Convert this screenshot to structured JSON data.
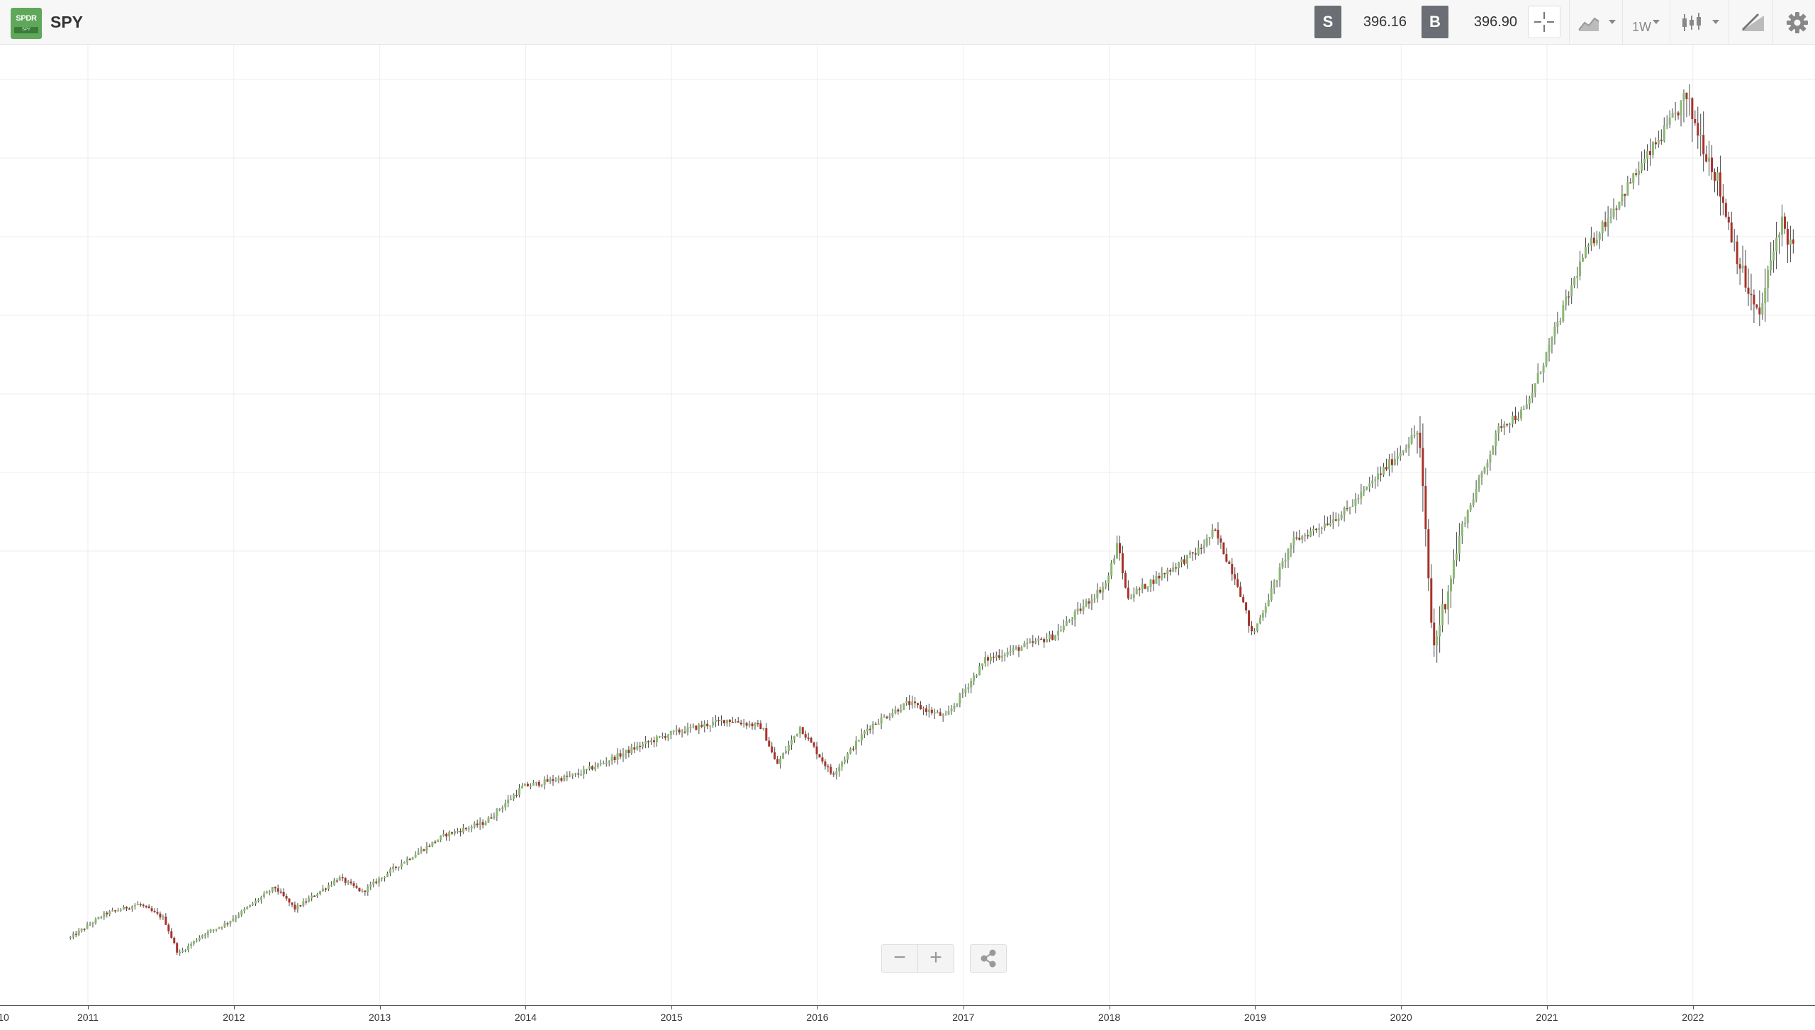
{
  "header": {
    "logo_text": "SPDR",
    "logo_sub": "SPY",
    "symbol": "SPY",
    "sell_label": "S",
    "sell_price": "396.16",
    "buy_label": "B",
    "buy_price": "396.90",
    "timeframe": "1W"
  },
  "colors": {
    "up": "#8bb874",
    "down": "#a8322a",
    "grid": "#eeeeee",
    "badge": "#6b6e75"
  },
  "icons": [
    "crosshair-icon",
    "area-chart-icon",
    "candlestick-icon",
    "drawing-tool-icon",
    "gear-icon",
    "share-icon",
    "zoom-out-icon",
    "zoom-in-icon"
  ],
  "chart_data": {
    "type": "candlestick",
    "title": "",
    "xlabel": "",
    "ylabel": "",
    "x_ticks": [
      "10",
      "2011",
      "2012",
      "2013",
      "2014",
      "2015",
      "2016",
      "2017",
      "2018",
      "2019",
      "2020",
      "2021",
      "2022"
    ],
    "x_tick_years": [
      2010.0,
      2011.0,
      2012.0,
      2013.0,
      2014.0,
      2015.0,
      2016.0,
      2017.0,
      2018.0,
      2019.0,
      2020.0,
      2021.0,
      2022.0
    ],
    "ylim": [
      95,
      490
    ],
    "y_axis_labels_visible": false,
    "grid": true,
    "interval": "weekly",
    "close_path": [
      {
        "t": 2010.88,
        "v": 120
      },
      {
        "t": 2011.12,
        "v": 130
      },
      {
        "t": 2011.35,
        "v": 134
      },
      {
        "t": 2011.52,
        "v": 128
      },
      {
        "t": 2011.62,
        "v": 113
      },
      {
        "t": 2011.78,
        "v": 121
      },
      {
        "t": 2011.95,
        "v": 126
      },
      {
        "t": 2012.28,
        "v": 141
      },
      {
        "t": 2012.42,
        "v": 132
      },
      {
        "t": 2012.72,
        "v": 145
      },
      {
        "t": 2012.88,
        "v": 139
      },
      {
        "t": 2013.12,
        "v": 150
      },
      {
        "t": 2013.45,
        "v": 163
      },
      {
        "t": 2013.72,
        "v": 168
      },
      {
        "t": 2013.98,
        "v": 183
      },
      {
        "t": 2014.35,
        "v": 188
      },
      {
        "t": 2014.78,
        "v": 200
      },
      {
        "t": 2014.98,
        "v": 205
      },
      {
        "t": 2015.38,
        "v": 211
      },
      {
        "t": 2015.62,
        "v": 208
      },
      {
        "t": 2015.72,
        "v": 192
      },
      {
        "t": 2015.88,
        "v": 208
      },
      {
        "t": 2016.1,
        "v": 188
      },
      {
        "t": 2016.35,
        "v": 208
      },
      {
        "t": 2016.62,
        "v": 218
      },
      {
        "t": 2016.88,
        "v": 212
      },
      {
        "t": 2017.15,
        "v": 236
      },
      {
        "t": 2017.62,
        "v": 246
      },
      {
        "t": 2017.98,
        "v": 268
      },
      {
        "t": 2018.06,
        "v": 285
      },
      {
        "t": 2018.12,
        "v": 262
      },
      {
        "t": 2018.62,
        "v": 282
      },
      {
        "t": 2018.72,
        "v": 290
      },
      {
        "t": 2018.88,
        "v": 268
      },
      {
        "t": 2018.98,
        "v": 246
      },
      {
        "t": 2019.25,
        "v": 285
      },
      {
        "t": 2019.62,
        "v": 298
      },
      {
        "t": 2019.98,
        "v": 322
      },
      {
        "t": 2020.12,
        "v": 332
      },
      {
        "t": 2020.22,
        "v": 240
      },
      {
        "t": 2020.42,
        "v": 292
      },
      {
        "t": 2020.68,
        "v": 334
      },
      {
        "t": 2020.85,
        "v": 340
      },
      {
        "t": 2021.25,
        "v": 405
      },
      {
        "t": 2021.62,
        "v": 440
      },
      {
        "t": 2021.95,
        "v": 470
      },
      {
        "t": 2022.15,
        "v": 440
      },
      {
        "t": 2022.35,
        "v": 395
      },
      {
        "t": 2022.45,
        "v": 378
      },
      {
        "t": 2022.6,
        "v": 420
      },
      {
        "t": 2022.7,
        "v": 405
      }
    ]
  },
  "toolbar": {
    "zoom_out_label": "−",
    "zoom_in_label": "+"
  }
}
